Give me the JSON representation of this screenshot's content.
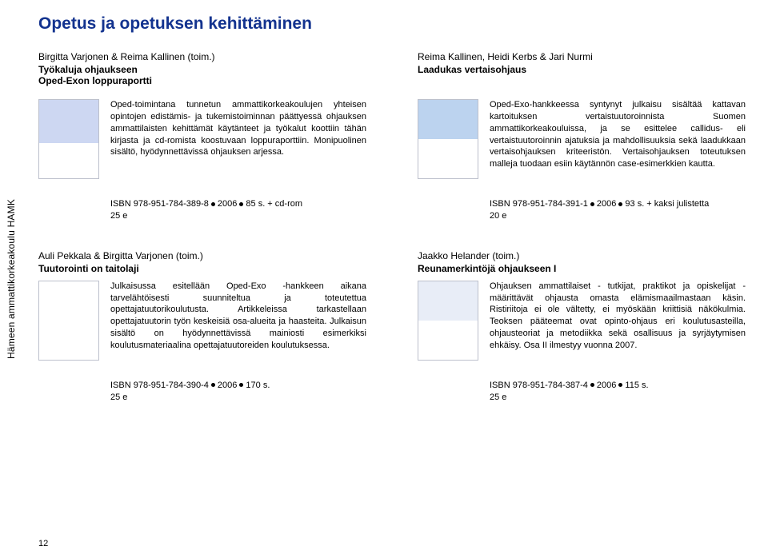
{
  "page_number": "12",
  "side_tab": "Hämeen ammattikorkeakoulu HAMK",
  "page_title": "Opetus ja opetuksen kehittäminen",
  "colors": {
    "title": "#13338f",
    "text": "#000000",
    "background": "#ffffff"
  },
  "books": [
    {
      "author": "Birgitta Varjonen & Reima Kallinen (toim.)",
      "title": "Työkaluja ohjaukseen",
      "subtitle": "Oped-Exon loppuraportti",
      "description": "Oped-toimintana tunnetun ammattikorkeakoulujen yhteisen opintojen edistämis- ja tukemistoiminnan päättyessä ohjauksen ammattilaisten kehittämät käytänteet ja työkalut koottiin tähän kirjasta ja cd-romista koostuvaan loppuraporttiin. Monipuolinen sisältö, hyödynnettävissä ohjauksen arjessa.",
      "isbn": "ISBN 978-951-784-389-8",
      "year": "2006",
      "pages": "85 s. + cd-rom",
      "price": "25 e"
    },
    {
      "author": "Reima Kallinen, Heidi Kerbs & Jari Nurmi",
      "title": "Laadukas vertaisohjaus",
      "subtitle": "",
      "description": "Oped-Exo-hankkeessa syntynyt julkaisu sisältää kattavan kartoituksen vertaistuutoroinnista Suomen ammattikorkeakouluissa, ja se esittelee callidus- eli vertaistuutoroinnin ajatuksia ja mahdollisuuksia sekä laadukkaan vertaisohjauksen kriteeristön. Vertaisohjauksen toteutuksen malleja tuodaan esiin käytännön case-esimerkkien kautta.",
      "isbn": "ISBN 978-951-784-391-1",
      "year": "2006",
      "pages": "93 s. + kaksi julistetta",
      "price": "20 e"
    },
    {
      "author": "Auli Pekkala & Birgitta Varjonen (toim.)",
      "title": "Tuutorointi on taitolaji",
      "subtitle": "",
      "description": "Julkaisussa esitellään Oped-Exo -hankkeen aikana tarvelähtöisesti suunniteltua ja toteutettua opettajatuutorikoulutusta. Artikkeleissa tarkastellaan opettajatuutorin työn keskeisiä osa-alueita ja haasteita. Julkaisun sisältö on hyödynnettävissä mainiosti esimerkiksi koulutusmateriaalina opettajatuutoreiden koulutuksessa.",
      "isbn": "ISBN 978-951-784-390-4",
      "year": "2006",
      "pages": "170 s.",
      "price": "25 e"
    },
    {
      "author": "Jaakko Helander (toim.)",
      "title": "Reunamerkintöjä ohjaukseen I",
      "subtitle": "",
      "description": "Ohjauksen ammattilaiset - tutkijat, praktikot ja opiskelijat - määrittävät ohjausta omasta elämismaailmastaan käsin. Ristiriitoja ei ole vältetty, ei myöskään kriittisiä näkökulmia. Teoksen pääteemat ovat opinto-ohjaus eri koulutusasteilla, ohjausteoriat ja metodiikka sekä osallisuus ja syrjäytymisen ehkäisy. Osa II ilmestyy vuonna 2007.",
      "isbn": "ISBN 978-951-784-387-4",
      "year": "2006",
      "pages": "115 s.",
      "price": "25 e"
    }
  ]
}
